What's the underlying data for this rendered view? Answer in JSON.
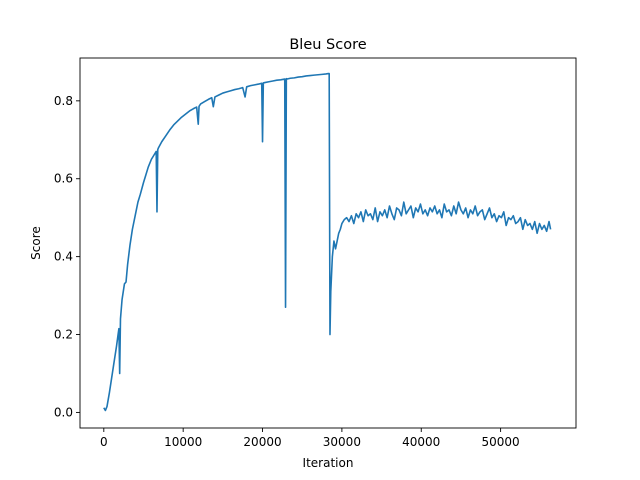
{
  "chart_data": {
    "type": "line",
    "title": "Bleu Score",
    "xlabel": "Iteration",
    "ylabel": "Score",
    "xlim": [
      -3000,
      59500
    ],
    "ylim": [
      -0.04,
      0.91
    ],
    "grid": false,
    "x_ticks": [
      0,
      10000,
      20000,
      30000,
      40000,
      50000
    ],
    "x_tick_labels": [
      "0",
      "10000",
      "20000",
      "30000",
      "40000",
      "50000"
    ],
    "y_ticks": [
      0.0,
      0.2,
      0.4,
      0.6,
      0.8
    ],
    "y_tick_labels": [
      "0.0",
      "0.2",
      "0.4",
      "0.6",
      "0.8"
    ],
    "series": [
      {
        "color": "#1f77b4",
        "x": [
          0,
          200,
          400,
          700,
          1000,
          1300,
          1600,
          1800,
          1900,
          2000,
          2100,
          2300,
          2600,
          2800,
          3000,
          3300,
          3600,
          4000,
          4300,
          4600,
          5000,
          5300,
          5600,
          6000,
          6300,
          6600,
          6700,
          6800,
          6900,
          7300,
          7800,
          8300,
          8800,
          9300,
          9800,
          10300,
          10800,
          11300,
          11700,
          11900,
          12000,
          12200,
          12700,
          13200,
          13600,
          13800,
          14000,
          14500,
          15000,
          15500,
          16000,
          16500,
          17000,
          17500,
          17800,
          18000,
          18500,
          19000,
          19500,
          19900,
          20000,
          20100,
          20300,
          20800,
          21300,
          21800,
          22300,
          22800,
          22900,
          23000,
          23100,
          23500,
          24000,
          24500,
          25000,
          25500,
          26000,
          26500,
          27000,
          27500,
          28000,
          28300,
          28400,
          28500,
          28600,
          28800,
          29000,
          29200,
          29400,
          29600,
          29800,
          30000,
          30300,
          30600,
          30900,
          31200,
          31500,
          31800,
          32100,
          32400,
          32700,
          33000,
          33300,
          33600,
          33900,
          34200,
          34500,
          34800,
          35100,
          35400,
          35700,
          36000,
          36300,
          36600,
          36900,
          37200,
          37500,
          37800,
          38100,
          38400,
          38700,
          39000,
          39300,
          39600,
          39900,
          40200,
          40500,
          40800,
          41100,
          41400,
          41700,
          42000,
          42300,
          42600,
          42900,
          43200,
          43500,
          43800,
          44100,
          44400,
          44700,
          45000,
          45300,
          45600,
          45900,
          46200,
          46500,
          46800,
          47100,
          47400,
          47700,
          48000,
          48300,
          48600,
          48900,
          49200,
          49500,
          49800,
          50100,
          50400,
          50700,
          51000,
          51300,
          51600,
          51900,
          52200,
          52500,
          52800,
          53100,
          53400,
          53700,
          54000,
          54300,
          54600,
          54900,
          55200,
          55500,
          55800,
          56100,
          56300
        ],
        "y": [
          0.012,
          0.005,
          0.015,
          0.05,
          0.09,
          0.13,
          0.17,
          0.2,
          0.215,
          0.1,
          0.24,
          0.29,
          0.33,
          0.335,
          0.38,
          0.43,
          0.47,
          0.51,
          0.54,
          0.56,
          0.59,
          0.61,
          0.63,
          0.65,
          0.66,
          0.67,
          0.515,
          0.675,
          0.68,
          0.695,
          0.71,
          0.725,
          0.738,
          0.748,
          0.758,
          0.766,
          0.774,
          0.78,
          0.784,
          0.74,
          0.786,
          0.792,
          0.798,
          0.804,
          0.808,
          0.785,
          0.81,
          0.815,
          0.82,
          0.823,
          0.826,
          0.829,
          0.831,
          0.834,
          0.81,
          0.836,
          0.839,
          0.841,
          0.843,
          0.845,
          0.695,
          0.846,
          0.847,
          0.849,
          0.851,
          0.853,
          0.854,
          0.856,
          0.27,
          0.857,
          0.856,
          0.858,
          0.859,
          0.861,
          0.862,
          0.864,
          0.865,
          0.866,
          0.867,
          0.868,
          0.869,
          0.87,
          0.87,
          0.2,
          0.31,
          0.4,
          0.44,
          0.42,
          0.44,
          0.46,
          0.47,
          0.485,
          0.495,
          0.5,
          0.49,
          0.505,
          0.485,
          0.51,
          0.5,
          0.515,
          0.49,
          0.52,
          0.505,
          0.51,
          0.495,
          0.525,
          0.49,
          0.515,
          0.505,
          0.52,
          0.5,
          0.53,
          0.51,
          0.495,
          0.525,
          0.52,
          0.505,
          0.54,
          0.51,
          0.52,
          0.53,
          0.5,
          0.525,
          0.515,
          0.535,
          0.51,
          0.52,
          0.505,
          0.525,
          0.515,
          0.53,
          0.51,
          0.52,
          0.5,
          0.535,
          0.515,
          0.52,
          0.505,
          0.53,
          0.51,
          0.54,
          0.52,
          0.51,
          0.525,
          0.5,
          0.52,
          0.51,
          0.53,
          0.505,
          0.515,
          0.52,
          0.495,
          0.51,
          0.525,
          0.5,
          0.51,
          0.49,
          0.505,
          0.5,
          0.515,
          0.48,
          0.5,
          0.495,
          0.505,
          0.485,
          0.49,
          0.5,
          0.47,
          0.495,
          0.48,
          0.485,
          0.47,
          0.49,
          0.46,
          0.485,
          0.47,
          0.48,
          0.465,
          0.49,
          0.47
        ]
      }
    ]
  }
}
